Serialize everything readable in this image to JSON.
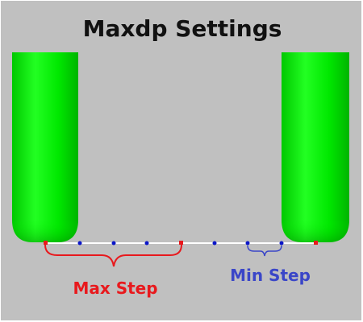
{
  "title": "Maxdp Settings",
  "labels": {
    "max_step": "Max Step",
    "min_step": "Min Step"
  },
  "colors": {
    "background": "#c0c0c0",
    "tool": "#00e600",
    "tool_highlight": "#6fff6f",
    "tool_shadow": "#009600",
    "floor_line": "#ffffff",
    "max_step": "#e8191d",
    "min_step": "#3a46c8",
    "point": "#0b16c8"
  }
}
